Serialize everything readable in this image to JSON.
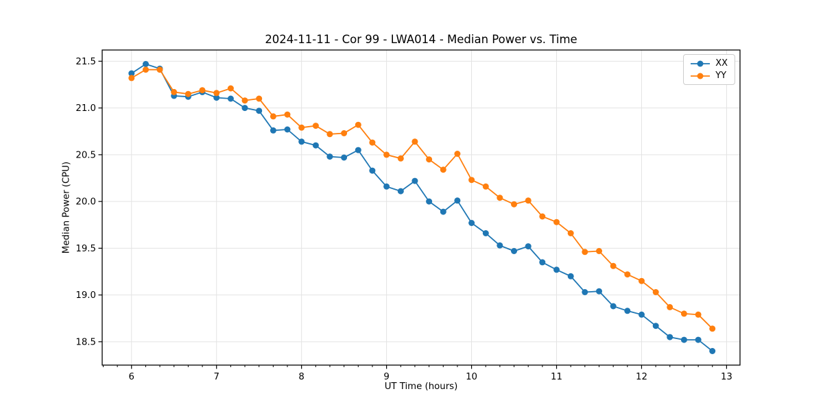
{
  "chart_data": {
    "type": "line",
    "title": "2024-11-11 - Cor 99 - LWA014 - Median Power vs. Time",
    "xlabel": "UT Time (hours)",
    "ylabel": "Median Power (CPU)",
    "x": [
      6.0,
      6.167,
      6.333,
      6.5,
      6.667,
      6.833,
      7.0,
      7.167,
      7.333,
      7.5,
      7.667,
      7.833,
      8.0,
      8.167,
      8.333,
      8.5,
      8.667,
      8.833,
      9.0,
      9.167,
      9.333,
      9.5,
      9.667,
      9.833,
      10.0,
      10.167,
      10.333,
      10.5,
      10.667,
      10.833,
      11.0,
      11.167,
      11.333,
      11.5,
      11.667,
      11.833,
      12.0,
      12.167,
      12.333,
      12.5,
      12.667,
      12.833
    ],
    "series": [
      {
        "name": "XX",
        "color": "#1f77b4",
        "values": [
          21.37,
          21.47,
          21.42,
          21.13,
          21.12,
          21.17,
          21.11,
          21.1,
          21.0,
          20.97,
          20.76,
          20.77,
          20.64,
          20.6,
          20.48,
          20.47,
          20.55,
          20.33,
          20.16,
          20.11,
          20.22,
          20.0,
          19.89,
          20.01,
          19.77,
          19.66,
          19.53,
          19.47,
          19.52,
          19.35,
          19.27,
          19.2,
          19.03,
          19.04,
          18.88,
          18.83,
          18.79,
          18.67,
          18.55,
          18.52,
          18.52,
          18.4
        ]
      },
      {
        "name": "YY",
        "color": "#ff7f0e",
        "values": [
          21.32,
          21.41,
          21.41,
          21.17,
          21.15,
          21.19,
          21.16,
          21.21,
          21.08,
          21.1,
          20.91,
          20.93,
          20.79,
          20.81,
          20.72,
          20.73,
          20.82,
          20.63,
          20.5,
          20.46,
          20.64,
          20.45,
          20.34,
          20.51,
          20.23,
          20.16,
          20.04,
          19.97,
          20.01,
          19.84,
          19.78,
          19.66,
          19.46,
          19.47,
          19.31,
          19.22,
          19.15,
          19.03,
          18.87,
          18.8,
          18.79,
          18.64
        ]
      }
    ],
    "xlim": [
      5.655,
      13.158
    ],
    "ylim": [
      18.25,
      21.62
    ],
    "xticks": [
      6,
      7,
      8,
      9,
      10,
      11,
      12,
      13
    ],
    "yticks": [
      18.5,
      19.0,
      19.5,
      20.0,
      20.5,
      21.0,
      21.5
    ],
    "grid": true,
    "legend_position": "upper right",
    "marker": "circle",
    "colors": {
      "grid": "#e3e3e3",
      "spine": "#000000",
      "background": "#ffffff"
    }
  }
}
